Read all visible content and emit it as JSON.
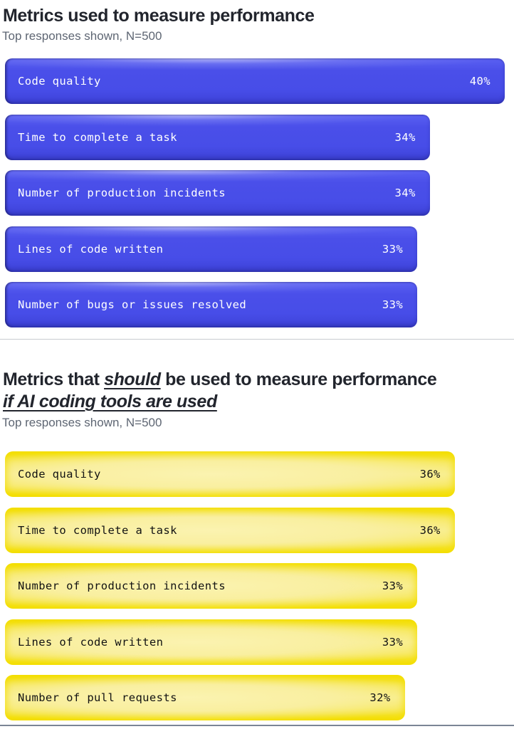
{
  "sections": [
    {
      "title": "Metrics used to measure performance",
      "subtitle": "Top responses shown, N=500",
      "bar_style": "bar-blue",
      "bars": [
        {
          "label": "Code quality",
          "value": "40%",
          "pct": 40
        },
        {
          "label": "Time to complete a task",
          "value": "34%",
          "pct": 34
        },
        {
          "label": "Number of production incidents",
          "value": "34%",
          "pct": 34
        },
        {
          "label": "Lines of code written",
          "value": "33%",
          "pct": 33
        },
        {
          "label": "Number of bugs or issues resolved",
          "value": "33%",
          "pct": 33
        }
      ]
    },
    {
      "title_prefix": "Metrics that ",
      "title_emphasis": "should",
      "title_suffix": " be used to measure performance",
      "title_line2": "if AI coding tools are used",
      "subtitle": "Top responses shown, N=500",
      "bar_style": "bar-yellow",
      "bars": [
        {
          "label": "Code quality",
          "value": "36%",
          "pct": 36
        },
        {
          "label": "Time to complete a task",
          "value": "36%",
          "pct": 36
        },
        {
          "label": "Number of production incidents",
          "value": "33%",
          "pct": 33
        },
        {
          "label": "Lines of code written",
          "value": "33%",
          "pct": 33
        },
        {
          "label": "Number of pull requests",
          "value": "32%",
          "pct": 32
        }
      ]
    }
  ],
  "colors": {
    "bar_blue": "#474de8",
    "bar_yellow": "#f3de00",
    "heading": "#22252d",
    "subtitle_gray": "#5e6673",
    "divider": "#c8cbd0",
    "bottom_rule": "#7b8595"
  },
  "chart_data": [
    {
      "type": "bar",
      "orientation": "horizontal",
      "title": "Metrics used to measure performance",
      "subtitle": "Top responses shown, N=500",
      "categories": [
        "Code quality",
        "Time to complete a task",
        "Number of production incidents",
        "Lines of code written",
        "Number of bugs or issues resolved"
      ],
      "values": [
        40,
        34,
        34,
        33,
        33
      ],
      "unit": "%",
      "value_labels": [
        "40%",
        "34%",
        "34%",
        "33%",
        "33%"
      ],
      "bar_color": "#474de8",
      "text_color": "#ffffff",
      "xlim": [
        0,
        41
      ],
      "grid": false,
      "legend": false
    },
    {
      "type": "bar",
      "orientation": "horizontal",
      "title": "Metrics that should be used to measure performance if AI coding tools are used",
      "subtitle": "Top responses shown, N=500",
      "categories": [
        "Code quality",
        "Time to complete a task",
        "Number of production incidents",
        "Lines of code written",
        "Number of pull requests"
      ],
      "values": [
        36,
        36,
        33,
        33,
        32
      ],
      "unit": "%",
      "value_labels": [
        "36%",
        "36%",
        "33%",
        "33%",
        "32%"
      ],
      "bar_color": "#f3de00",
      "text_color": "#121212",
      "xlim": [
        0,
        41
      ],
      "grid": false,
      "legend": false
    }
  ]
}
